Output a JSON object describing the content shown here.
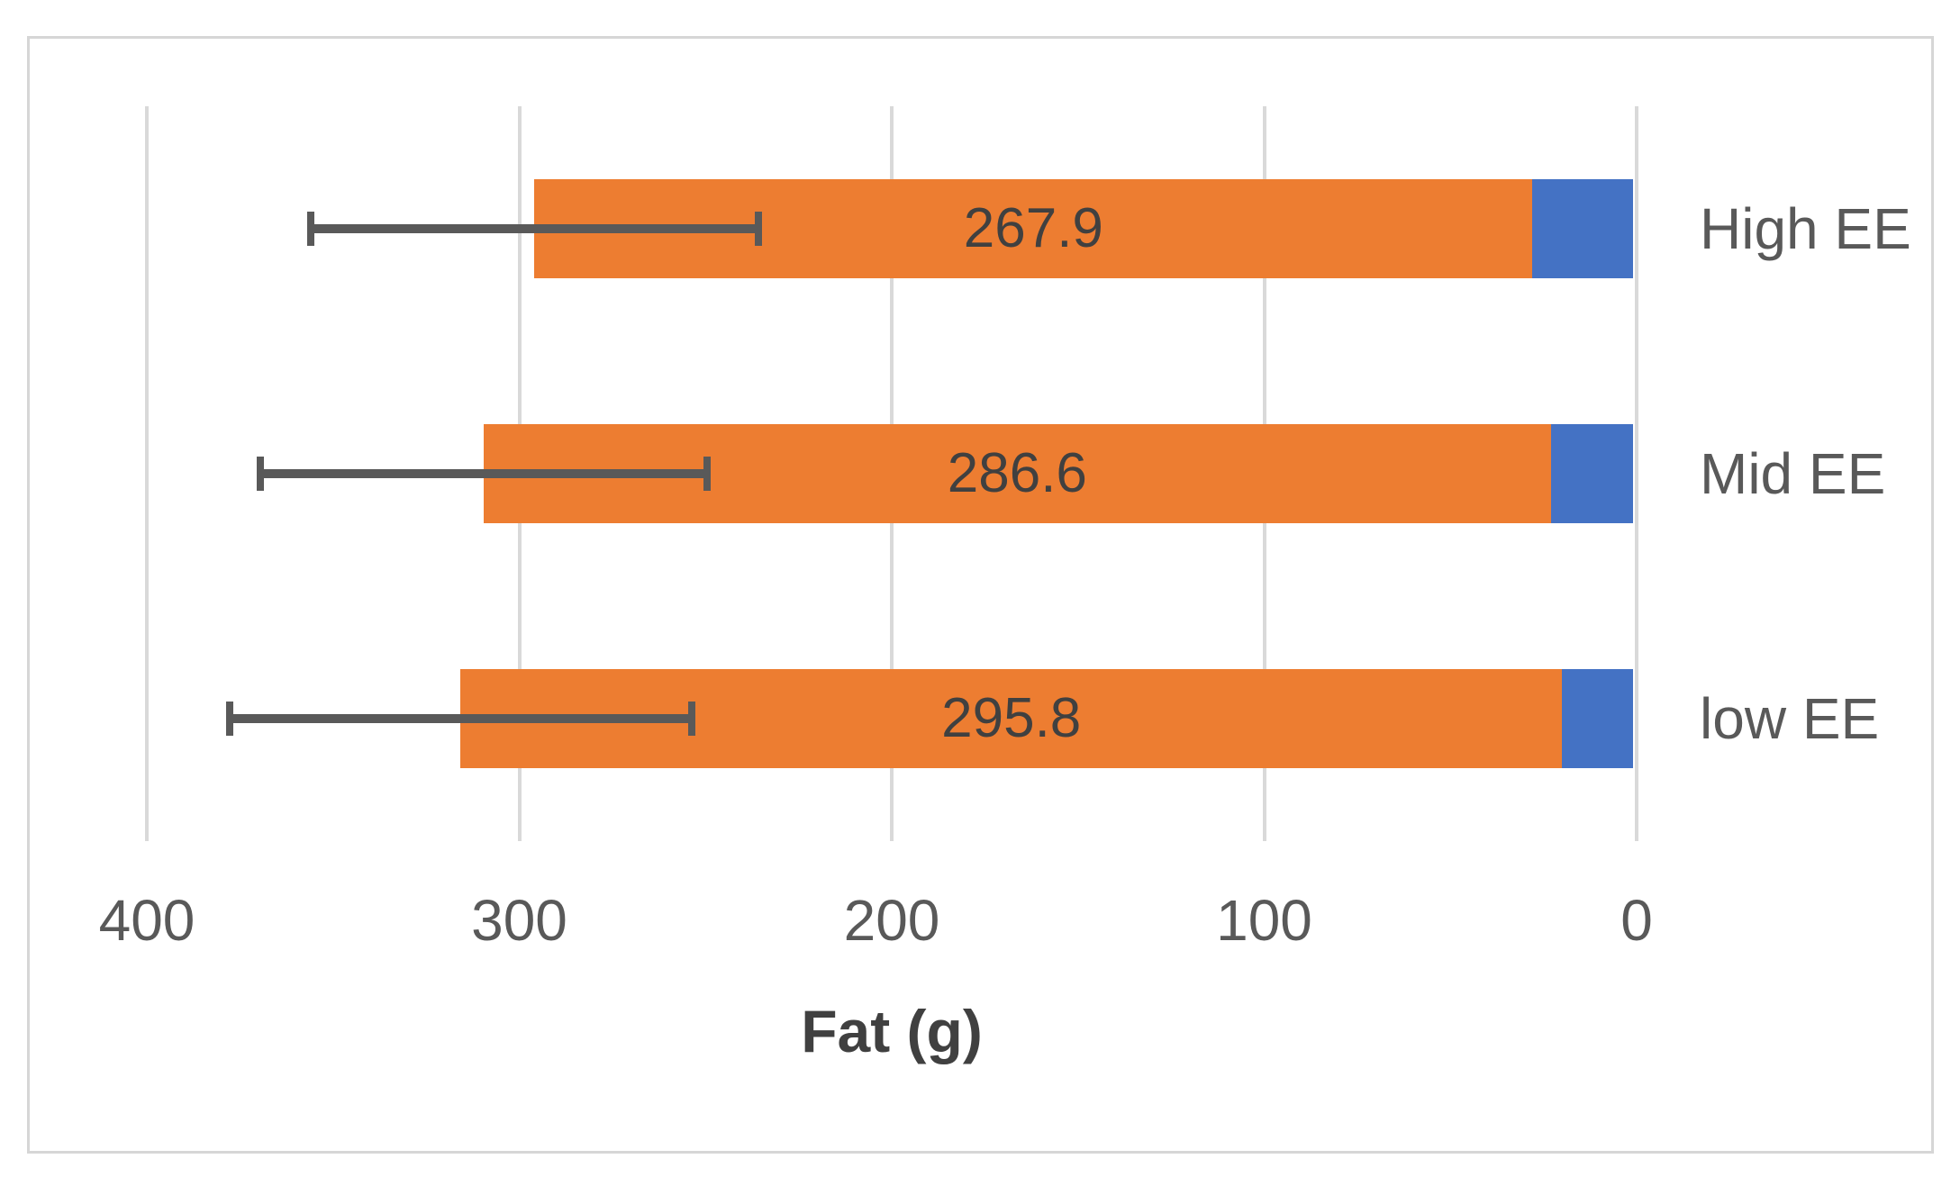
{
  "chart_data": {
    "type": "bar",
    "orientation": "horizontal",
    "axis_reversed": true,
    "title": "",
    "xlabel": "Fat (g)",
    "ylabel": "",
    "categories": [
      "High EE",
      "Mid EE",
      "low EE"
    ],
    "series": [
      {
        "name": "blue-segment",
        "color": "#4472C4",
        "values": [
          28,
          23,
          20
        ],
        "labeled": false
      },
      {
        "name": "fat",
        "color": "#ED7D31",
        "values": [
          267.9,
          286.6,
          295.8
        ],
        "labels": [
          "267.9",
          "286.6",
          "295.8"
        ],
        "labeled": true
      }
    ],
    "error_bars": {
      "applies_to": "stack-total",
      "plus_minus": [
        60,
        60,
        62
      ]
    },
    "x_ticks": [
      "400",
      "300",
      "200",
      "100",
      "0"
    ],
    "x_tick_values": [
      400,
      300,
      200,
      100,
      0
    ],
    "xlim": [
      400,
      0
    ],
    "grid": true,
    "legend": "none"
  },
  "colors": {
    "orange": "#ED7D31",
    "blue": "#4472C4",
    "gridline": "#D9D9D9",
    "frame_border": "#D6D6D6",
    "error_bar": "#595959",
    "tick_text": "#595959",
    "category_text": "#595959",
    "data_label_text": "#404040",
    "axis_title_text": "#404040",
    "background": "#ffffff"
  }
}
